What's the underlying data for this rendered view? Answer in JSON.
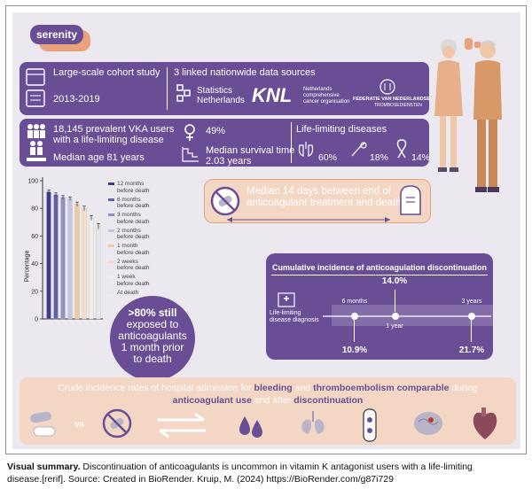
{
  "brand": "serenity",
  "cohort": {
    "title": "Large-scale cohort study",
    "years": "2013-2019"
  },
  "sources": {
    "title": "3 linked nationwide data sources",
    "cbs_line1": "Statistics",
    "cbs_line2": "Netherlands",
    "knl": "KNL",
    "knl_desc1": "Netherlands",
    "knl_desc2": "comprehensive",
    "knl_desc3": "cancer organisation",
    "fnt_line1": "FEDERATIE VAN NEDERLANDSE",
    "fnt_line2": "TROMBOSEDIENSTEN"
  },
  "population": {
    "users_line1": "18,145 prevalent VKA users",
    "users_line2": "with a life-limiting disease",
    "median_age": "Median age 81 years",
    "female_pct": "49%",
    "survival_line1": "Median survival time",
    "survival_line2": "2.03 years",
    "diseases_title": "Life-limiting diseases",
    "disease_pcts": [
      "60%",
      "18%",
      "14%"
    ]
  },
  "chart_data": {
    "type": "bar",
    "categories": [
      "12 months before death",
      "6 months before death",
      "3 months before death",
      "2 months before death",
      "1 month before death",
      "2 weeks before death",
      "1 week before death",
      "At death"
    ],
    "values": [
      92,
      90,
      88,
      87,
      83,
      80,
      73,
      67
    ],
    "errors": [
      1.2,
      1.2,
      1.2,
      1.3,
      1.5,
      1.6,
      1.8,
      2.0
    ],
    "colors": [
      "#3a3f8f",
      "#5e62a8",
      "#8f93c4",
      "#c3c6e0",
      "#f1c9a0",
      "#f6ddc6",
      "#f3eee9",
      "#e7e7e7"
    ],
    "legend_labels": [
      [
        "12 months",
        "before death"
      ],
      [
        "6 months",
        "before death"
      ],
      [
        "3 months",
        "before death"
      ],
      [
        "2 months",
        "before death"
      ],
      [
        "1 month",
        "before death"
      ],
      [
        "2 weeks",
        "before death"
      ],
      [
        "1 week",
        "before death"
      ],
      [
        "At death",
        ""
      ]
    ],
    "ylabel": "Percentage",
    "ylim": [
      0,
      100
    ],
    "yticks": [
      0,
      20,
      40,
      60,
      80,
      100
    ]
  },
  "median_days": {
    "line1": "Median 14 days between end of",
    "line2": "anticoagulant treatment and death"
  },
  "exposed": {
    "line1": ">80% still",
    "line2": "exposed to",
    "line3": "anticoagulants",
    "line4": "1 month prior",
    "line5": "to death"
  },
  "incidence": {
    "title": "Cumulative incidence of anticoagulation discontinuation",
    "start_line1": "Life-limiting",
    "start_line2": "disease diagnosis",
    "timepoints": [
      {
        "label": "6 months",
        "value": "10.9%"
      },
      {
        "label": "1 year",
        "value": "14.0%"
      },
      {
        "label": "3 years",
        "value": "21.7%"
      }
    ]
  },
  "crude": {
    "line1_a": "Crude incidence rates of hospital admission for ",
    "line1_b": "bleeding",
    "line1_c": " and ",
    "line1_d": "thromboembolism comparable",
    "line1_e": " during",
    "line2_a": "anticoagulant use",
    "line2_b": " and after ",
    "line2_c": "discontinuation",
    "vs": "vs"
  },
  "caption": {
    "bold": "Visual summary.",
    "text1": " Discontinuation of anticoagulants is uncommon in vitamin K antagonist users with a life-limiting",
    "text2": "disease.[rerif]. Source: Created in BioRender. Kruip, M. (2024) https://BioRender.com/g87i729"
  },
  "colors": {
    "purple": "#6a4e95",
    "orange": "#e8a27c",
    "panel": "#ece8f0",
    "peach": "#f3d6c4"
  }
}
